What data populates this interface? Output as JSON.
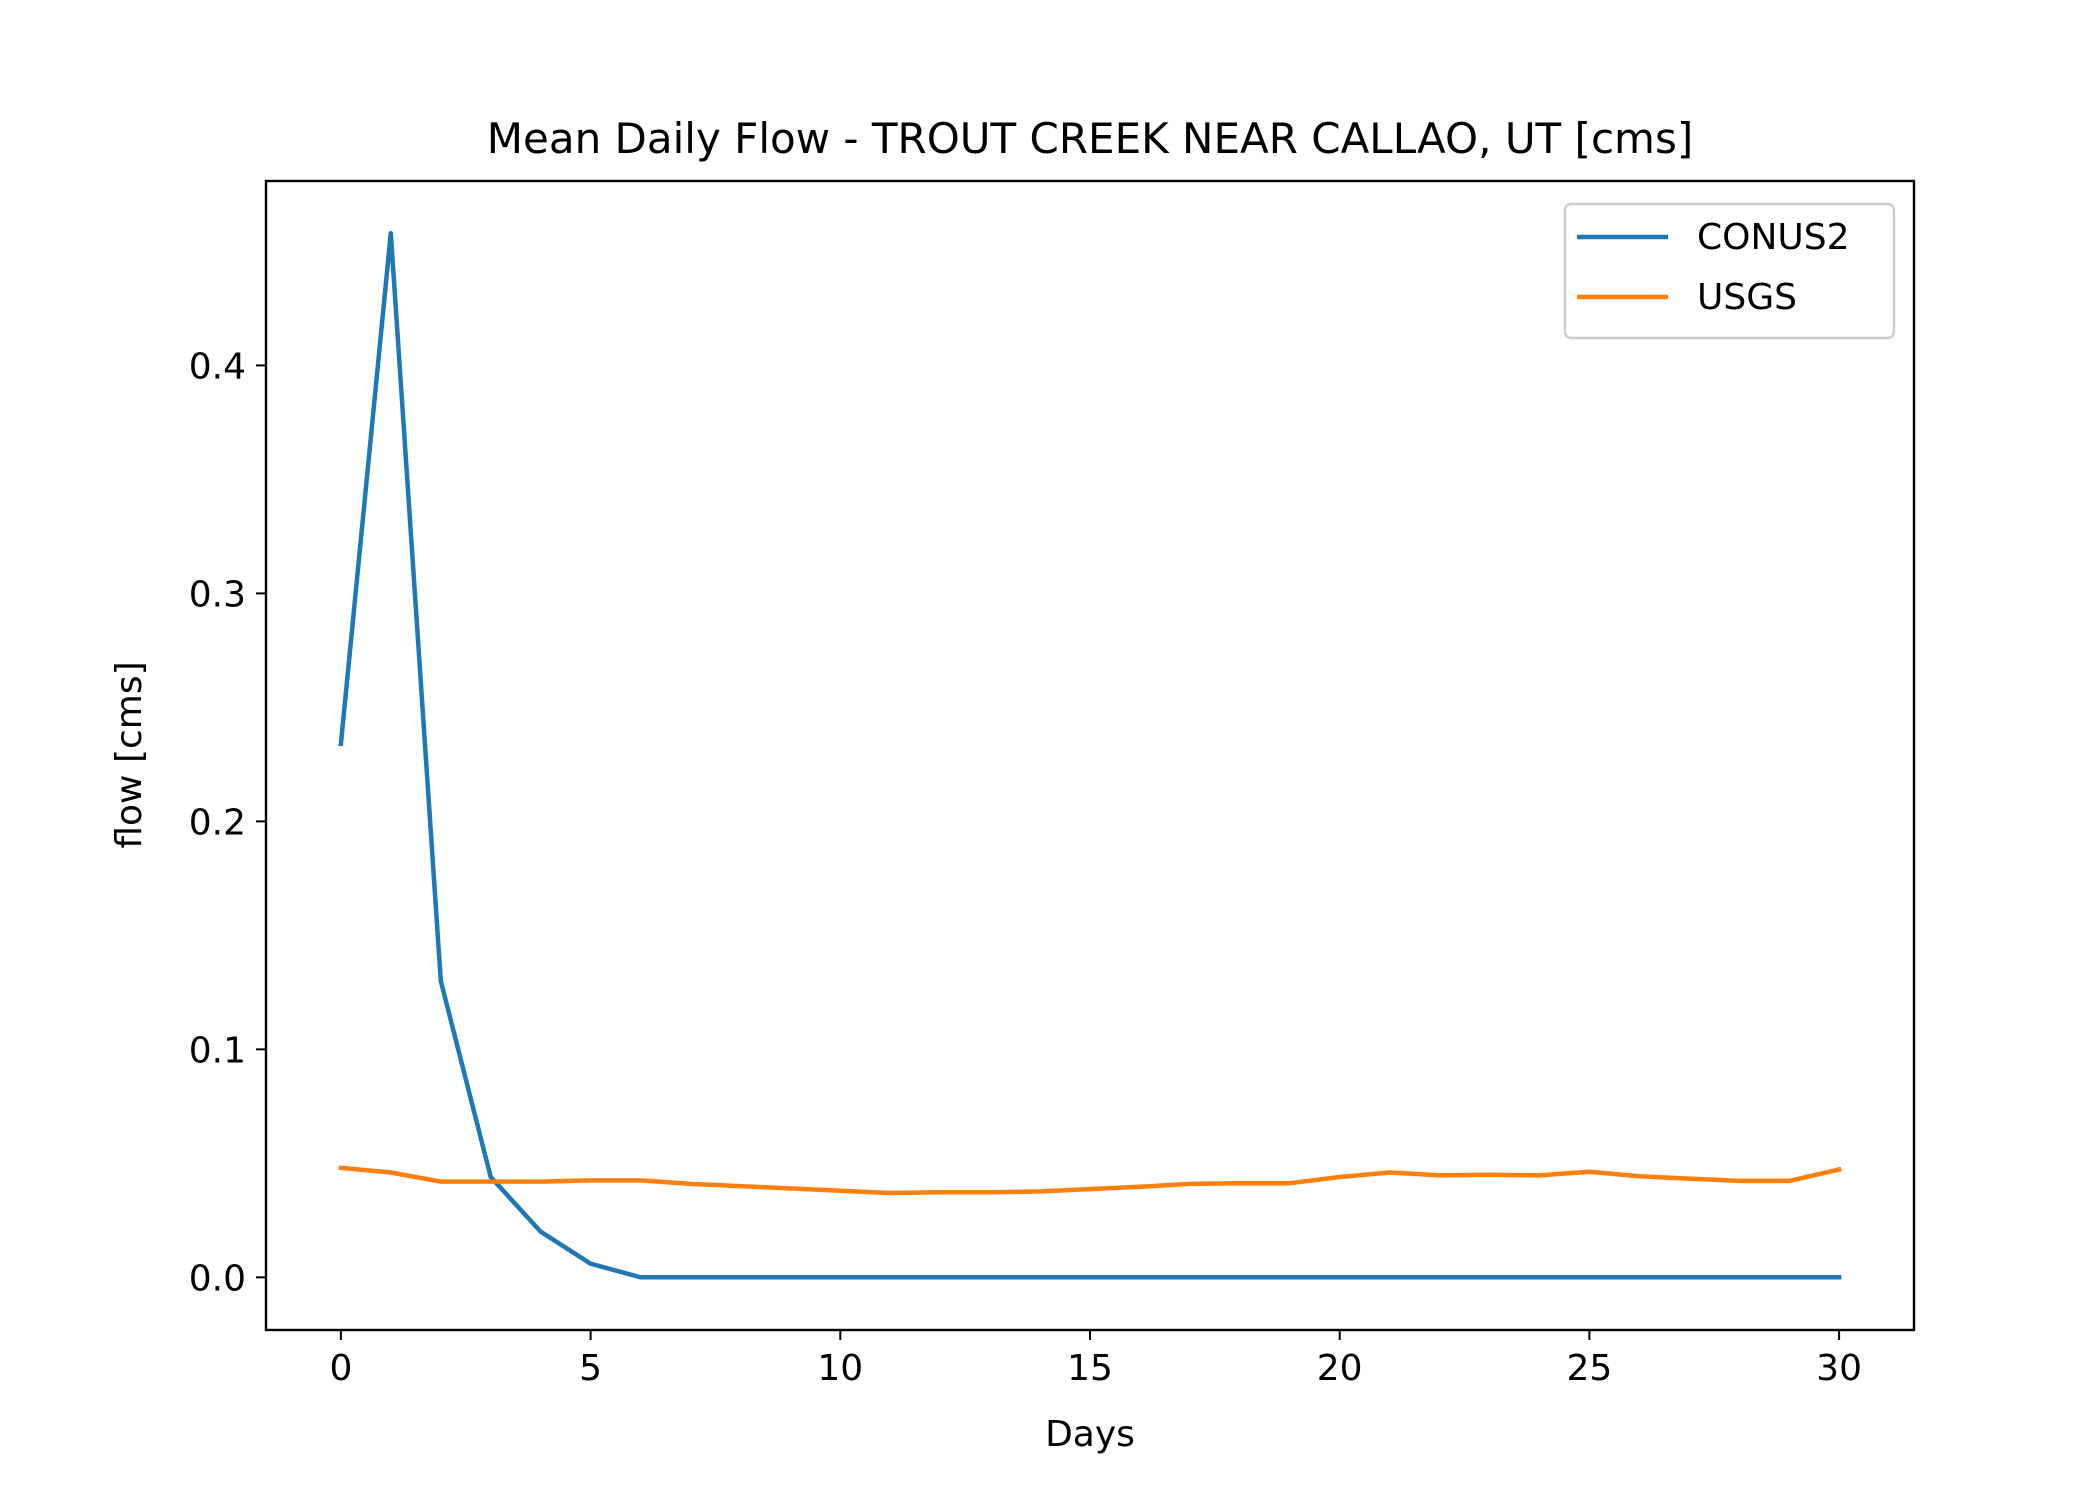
{
  "chart_data": {
    "type": "line",
    "title": "Mean Daily Flow - TROUT CREEK NEAR CALLAO, UT [cms]",
    "xlabel": "Days",
    "ylabel": "flow [cms]",
    "xlim": [
      -1.5,
      31.5
    ],
    "ylim": [
      -0.0231,
      0.4809
    ],
    "xticks": [
      0,
      5,
      10,
      15,
      20,
      25,
      30
    ],
    "xtick_labels": [
      "0",
      "5",
      "10",
      "15",
      "20",
      "25",
      "30"
    ],
    "yticks": [
      0.0,
      0.1,
      0.2,
      0.3,
      0.4
    ],
    "ytick_labels": [
      "0.0",
      "0.1",
      "0.2",
      "0.3",
      "0.4"
    ],
    "grid": false,
    "legend_position": "upper right",
    "x": [
      0,
      1,
      2,
      3,
      4,
      5,
      6,
      7,
      8,
      9,
      10,
      11,
      12,
      13,
      14,
      15,
      16,
      17,
      18,
      19,
      20,
      21,
      22,
      23,
      24,
      25,
      26,
      27,
      28,
      29,
      30
    ],
    "series": [
      {
        "name": "CONUS2",
        "color": "#1f77b4",
        "values": [
          0.234,
          0.458,
          0.13,
          0.044,
          0.02,
          0.006,
          0.0,
          0.0,
          0.0,
          0.0,
          0.0,
          0.0,
          0.0,
          0.0,
          0.0,
          0.0,
          0.0,
          0.0,
          0.0,
          0.0,
          0.0,
          0.0,
          0.0,
          0.0,
          0.0,
          0.0,
          0.0,
          0.0,
          0.0,
          0.0,
          0.0
        ]
      },
      {
        "name": "USGS",
        "color": "#ff7f0e",
        "values": [
          0.048,
          0.046,
          0.042,
          0.042,
          0.042,
          0.0425,
          0.0425,
          0.041,
          0.04,
          0.039,
          0.038,
          0.037,
          0.0373,
          0.0373,
          0.0377,
          0.0387,
          0.0397,
          0.041,
          0.0413,
          0.0413,
          0.044,
          0.046,
          0.0447,
          0.045,
          0.0447,
          0.0463,
          0.0443,
          0.0433,
          0.0423,
          0.0423,
          0.0473
        ]
      }
    ]
  }
}
